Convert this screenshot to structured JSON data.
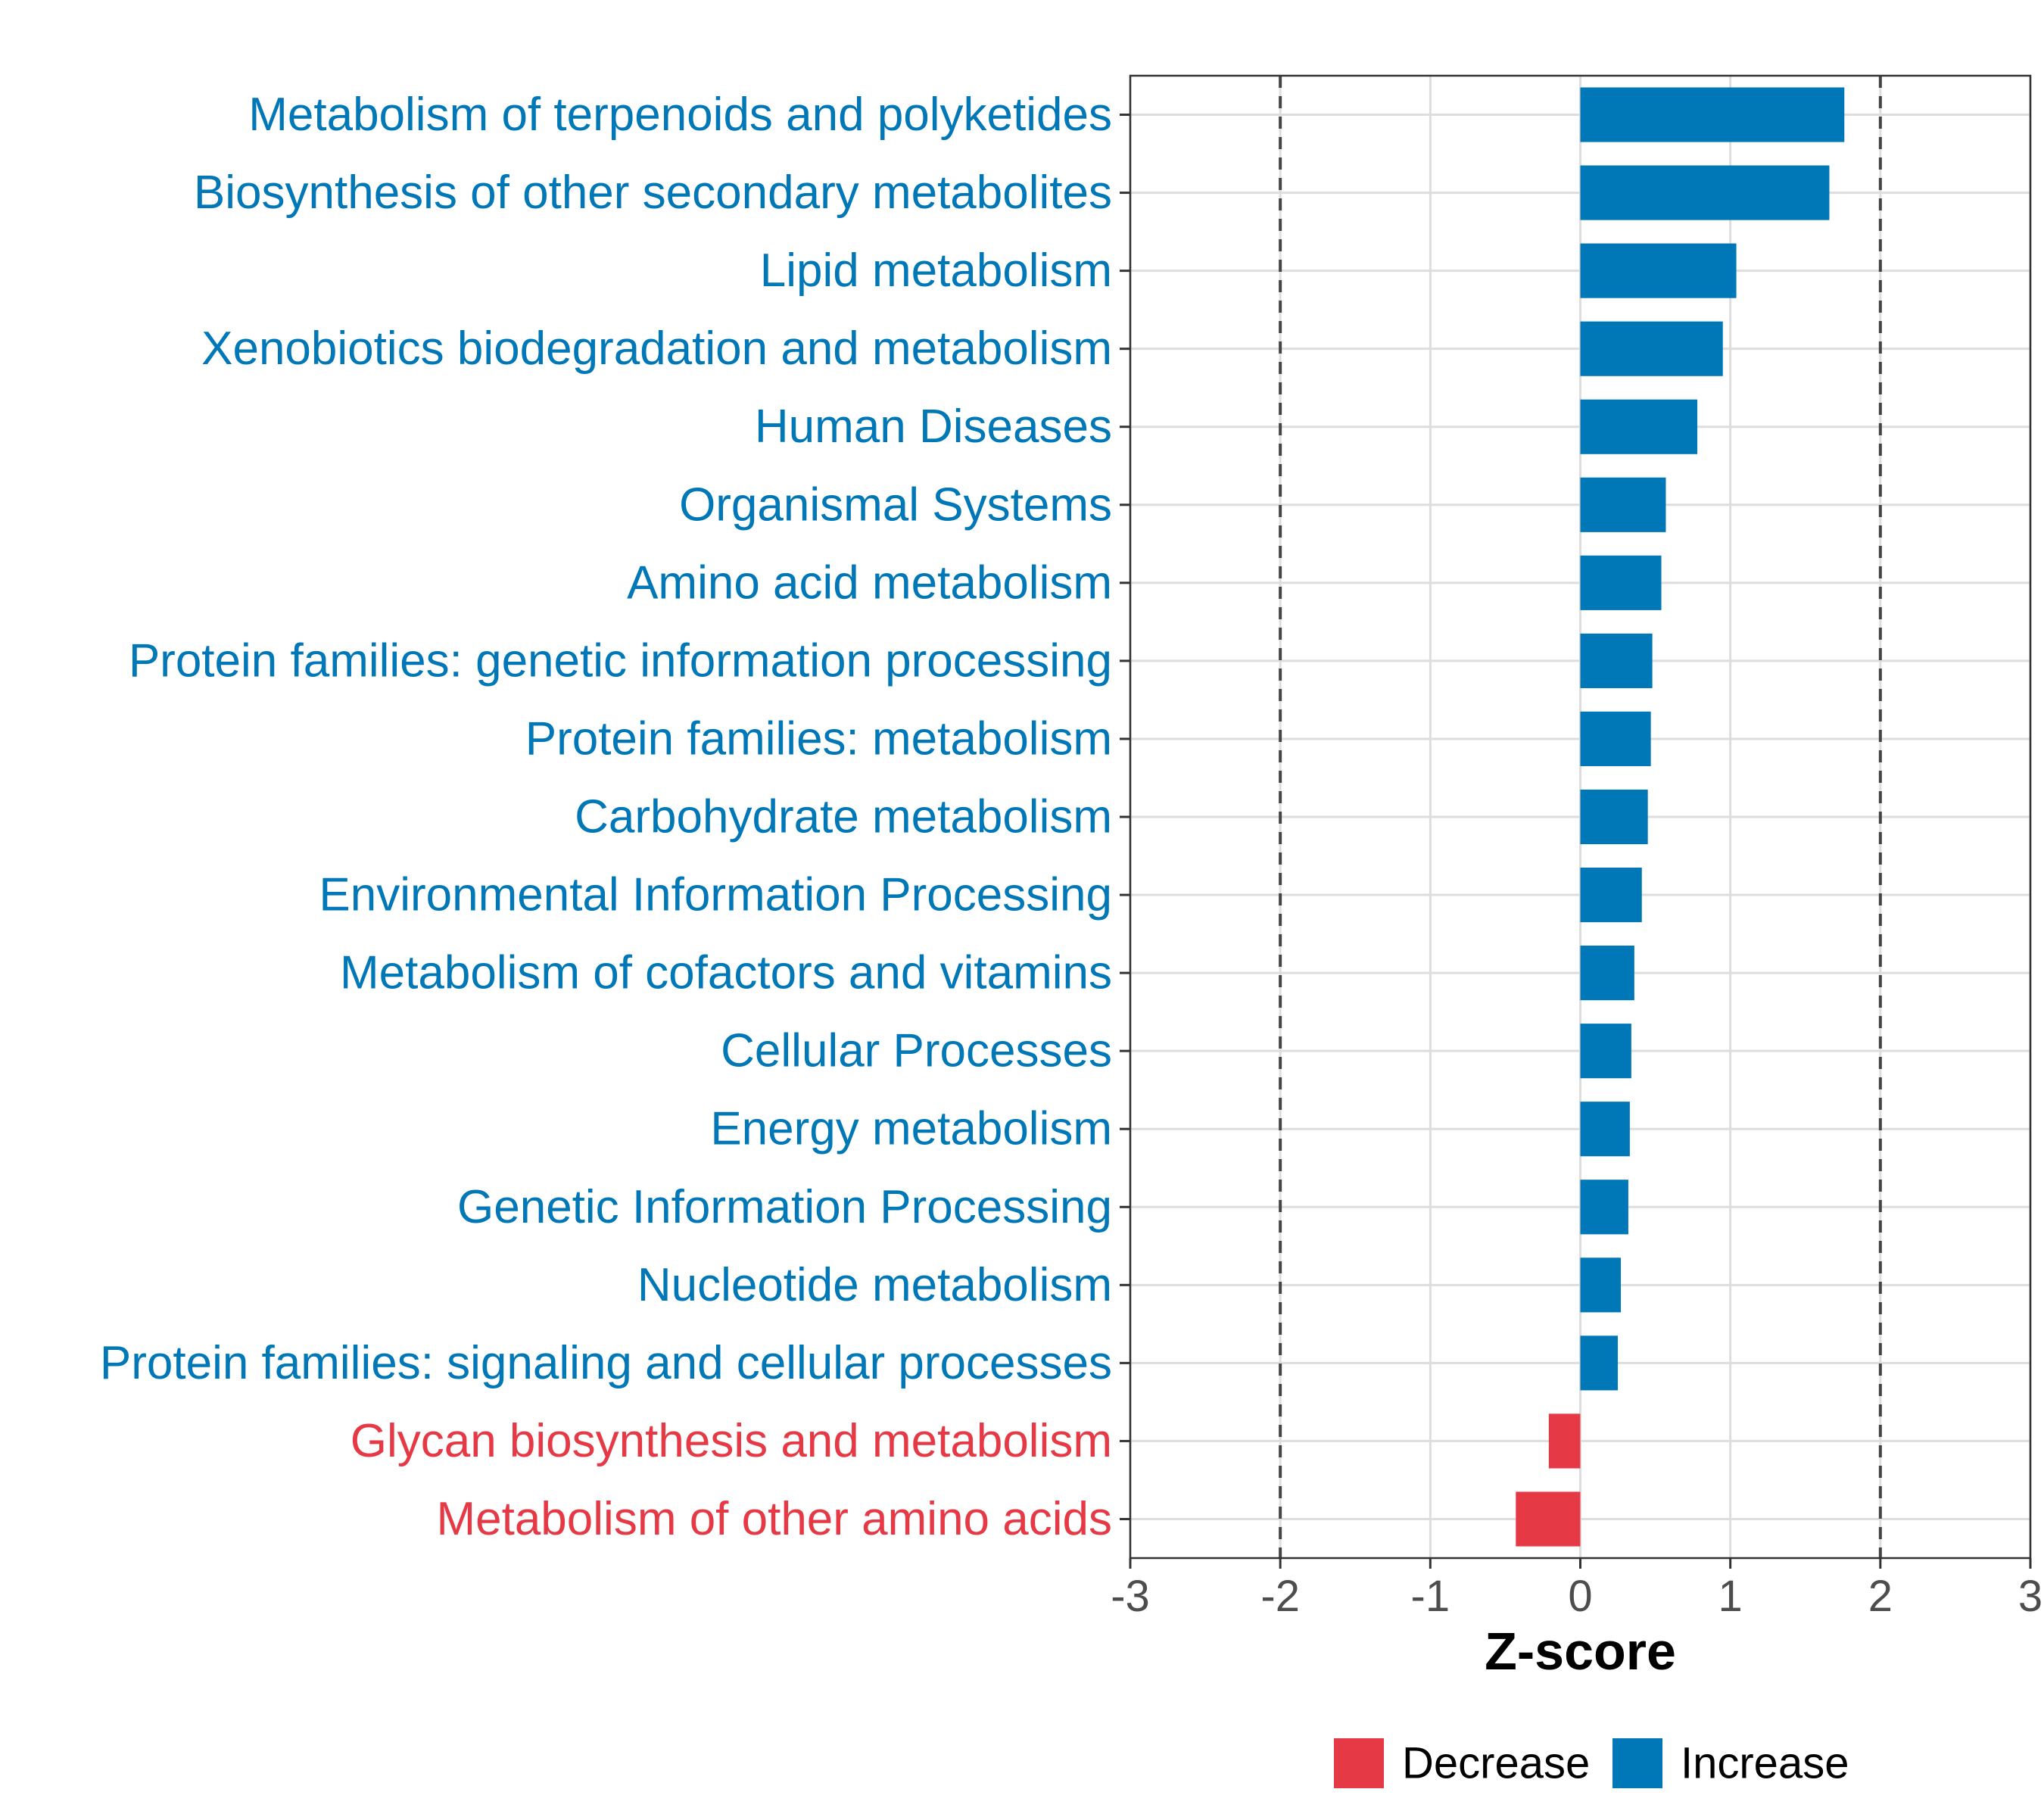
{
  "chart_data": {
    "type": "bar",
    "orientation": "horizontal",
    "title": "",
    "xlabel": "Z-score",
    "ylabel": "",
    "xlim": [
      -3,
      3
    ],
    "xticks": [
      -3,
      -2,
      -1,
      0,
      1,
      2,
      3
    ],
    "reference_lines": [
      -2,
      2
    ],
    "grid": true,
    "categories": [
      "Metabolism of terpenoids and polyketides",
      "Biosynthesis of other secondary metabolites",
      "Lipid metabolism",
      "Xenobiotics biodegradation and metabolism",
      "Human Diseases",
      "Organismal Systems",
      "Amino acid metabolism",
      "Protein families: genetic information processing",
      "Protein families: metabolism",
      "Carbohydrate metabolism",
      "Environmental Information Processing",
      "Metabolism of cofactors and vitamins",
      "Cellular Processes",
      "Energy metabolism",
      "Genetic Information Processing",
      "Nucleotide metabolism",
      "Protein families: signaling and cellular processes",
      "Glycan biosynthesis and metabolism",
      "Metabolism of other amino acids"
    ],
    "values": [
      1.76,
      1.66,
      1.04,
      0.95,
      0.78,
      0.57,
      0.54,
      0.48,
      0.47,
      0.45,
      0.41,
      0.36,
      0.34,
      0.33,
      0.32,
      0.27,
      0.25,
      -0.21,
      -0.43
    ],
    "groups": [
      "Increase",
      "Increase",
      "Increase",
      "Increase",
      "Increase",
      "Increase",
      "Increase",
      "Increase",
      "Increase",
      "Increase",
      "Increase",
      "Increase",
      "Increase",
      "Increase",
      "Increase",
      "Increase",
      "Increase",
      "Decrease",
      "Decrease"
    ],
    "legend": {
      "placement": "bottom",
      "entries": [
        {
          "label": "Decrease",
          "color": "#e63946"
        },
        {
          "label": "Increase",
          "color": "#0077b6"
        }
      ]
    },
    "colors": {
      "Decrease": "#e63946",
      "Increase": "#0077b6"
    }
  }
}
